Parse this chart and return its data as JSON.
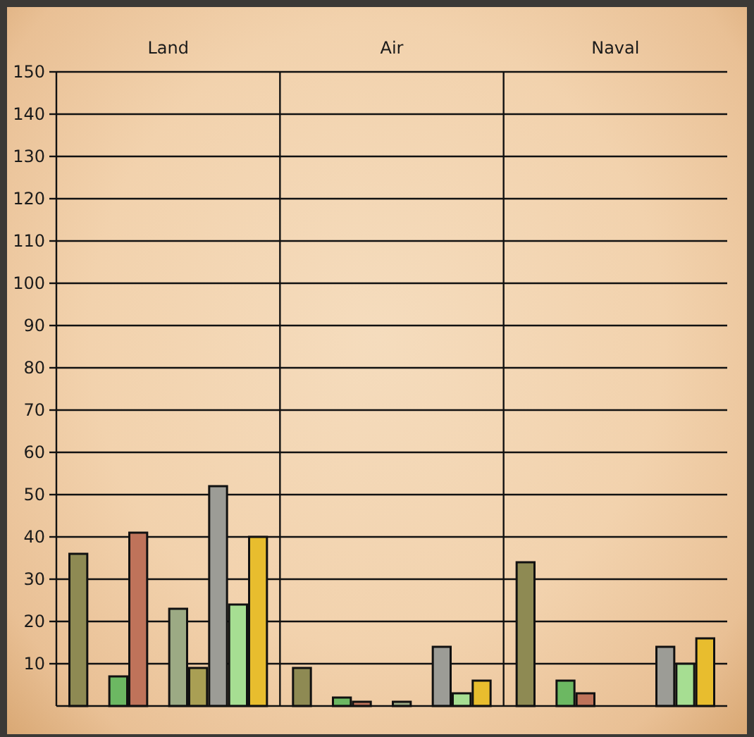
{
  "chart_data": {
    "type": "bar",
    "categories": [
      "Land",
      "Air",
      "Naval"
    ],
    "series": [
      {
        "color": "#8e8a53",
        "values": [
          36,
          9,
          34
        ]
      },
      {
        "values": [
          null,
          null,
          null
        ]
      },
      {
        "color": "#6cb862",
        "values": [
          7,
          2,
          6
        ]
      },
      {
        "color": "#bf735a",
        "values": [
          41,
          1,
          3
        ]
      },
      {
        "values": [
          null,
          null,
          null
        ]
      },
      {
        "color": "#9caa84",
        "values": [
          23,
          1,
          null
        ]
      },
      {
        "color": "#a99f54",
        "values": [
          9,
          null,
          null
        ]
      },
      {
        "color": "#9c9c96",
        "values": [
          52,
          14,
          14
        ]
      },
      {
        "color": "#a6de92",
        "values": [
          24,
          3,
          10
        ]
      },
      {
        "color": "#e8bd2e",
        "values": [
          40,
          6,
          16
        ]
      }
    ],
    "ylim": [
      0,
      150
    ],
    "yticks": [
      10,
      20,
      30,
      40,
      50,
      60,
      70,
      80,
      90,
      100,
      110,
      120,
      130,
      140,
      150
    ],
    "grid": true
  }
}
